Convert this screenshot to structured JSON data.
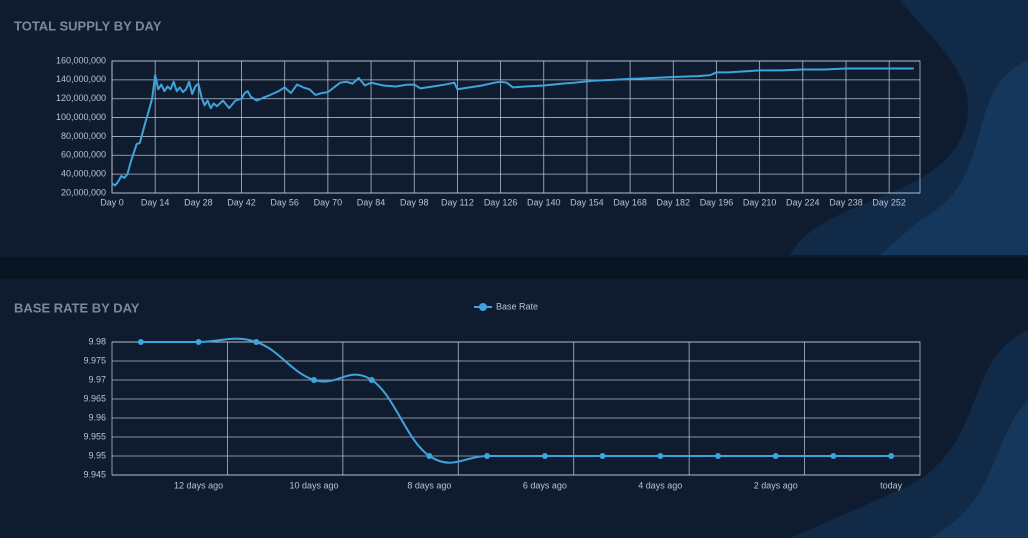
{
  "chart_data": [
    {
      "type": "line",
      "title": "TOTAL SUPPLY BY DAY",
      "color": "#3fa3dc",
      "grid": true,
      "smooth": false,
      "markers": false,
      "x": [
        0,
        1,
        2,
        3,
        4,
        5,
        6,
        7,
        8,
        9,
        10,
        11,
        12,
        13,
        14,
        15,
        16,
        17,
        18,
        19,
        20,
        21,
        22,
        23,
        24,
        25,
        26,
        27,
        28,
        29,
        30,
        31,
        32,
        33,
        34,
        36,
        38,
        40,
        42,
        43,
        44,
        45,
        47,
        49,
        52,
        54,
        56,
        58,
        60,
        62,
        64,
        66,
        68,
        70,
        72,
        74,
        76,
        78,
        80,
        82,
        84,
        88,
        92,
        96,
        98,
        100,
        104,
        108,
        111,
        112,
        116,
        120,
        124,
        126,
        128,
        130,
        134,
        140,
        146,
        150,
        156,
        162,
        168,
        175,
        182,
        190,
        194,
        196,
        200,
        205,
        210,
        217,
        224,
        231,
        238,
        245,
        252,
        260
      ],
      "values": [
        30000000,
        28000000,
        32000000,
        38000000,
        36000000,
        40000000,
        52000000,
        62000000,
        72000000,
        73000000,
        85000000,
        97000000,
        108000000,
        120000000,
        145000000,
        130000000,
        135000000,
        128000000,
        133000000,
        130000000,
        138000000,
        128000000,
        132000000,
        127000000,
        130000000,
        138000000,
        125000000,
        133000000,
        136000000,
        122000000,
        113000000,
        118000000,
        110000000,
        115000000,
        112000000,
        118000000,
        110000000,
        118000000,
        120000000,
        126000000,
        128000000,
        122000000,
        118000000,
        121000000,
        125000000,
        128000000,
        132000000,
        126000000,
        135000000,
        132000000,
        130000000,
        124000000,
        126000000,
        127000000,
        132000000,
        137000000,
        138000000,
        136000000,
        142000000,
        134000000,
        137000000,
        134000000,
        133000000,
        135000000,
        135000000,
        131000000,
        133000000,
        135000000,
        137000000,
        130000000,
        132000000,
        134000000,
        137000000,
        138000000,
        137000000,
        132000000,
        133000000,
        134000000,
        136000000,
        137000000,
        139000000,
        140000000,
        141000000,
        142000000,
        143000000,
        144000000,
        145000000,
        148000000,
        148000000,
        149000000,
        150000000,
        150000000,
        151000000,
        151000000,
        152000000,
        152000000,
        152000000,
        152000000
      ],
      "xlim": [
        0,
        262
      ],
      "xticks": [
        {
          "value": 0,
          "label": "Day 0"
        },
        {
          "value": 14,
          "label": "Day 14"
        },
        {
          "value": 28,
          "label": "Day 28"
        },
        {
          "value": 42,
          "label": "Day 42"
        },
        {
          "value": 56,
          "label": "Day 56"
        },
        {
          "value": 70,
          "label": "Day 70"
        },
        {
          "value": 84,
          "label": "Day 84"
        },
        {
          "value": 98,
          "label": "Day 98"
        },
        {
          "value": 112,
          "label": "Day 112"
        },
        {
          "value": 126,
          "label": "Day 126"
        },
        {
          "value": 140,
          "label": "Day 140"
        },
        {
          "value": 154,
          "label": "Day 154"
        },
        {
          "value": 168,
          "label": "Day 168"
        },
        {
          "value": 182,
          "label": "Day 182"
        },
        {
          "value": 196,
          "label": "Day 196"
        },
        {
          "value": 210,
          "label": "Day 210"
        },
        {
          "value": 224,
          "label": "Day 224"
        },
        {
          "value": 238,
          "label": "Day 238"
        },
        {
          "value": 252,
          "label": "Day 252"
        }
      ],
      "ylim": [
        20000000,
        160000000
      ],
      "yticks": [
        {
          "value": 20000000,
          "label": "20,000,000"
        },
        {
          "value": 40000000,
          "label": "40,000,000"
        },
        {
          "value": 60000000,
          "label": "60,000,000"
        },
        {
          "value": 80000000,
          "label": "80,000,000"
        },
        {
          "value": 100000000,
          "label": "100,000,000"
        },
        {
          "value": 120000000,
          "label": "120,000,000"
        },
        {
          "value": 140000000,
          "label": "140,000,000"
        },
        {
          "value": 160000000,
          "label": "160,000,000"
        }
      ]
    },
    {
      "type": "line",
      "title": "BASE RATE BY DAY",
      "grid": true,
      "smooth": true,
      "markers": true,
      "legend": "top",
      "categories": [
        null,
        "12 days ago",
        null,
        "10 days ago",
        null,
        "8 days ago",
        null,
        "6 days ago",
        null,
        "4 days ago",
        null,
        "2 days ago",
        null,
        "today"
      ],
      "series": [
        {
          "name": "Base Rate",
          "color": "#3fa3dc",
          "values": [
            9.98,
            9.98,
            9.98,
            9.97,
            9.97,
            9.95,
            9.95,
            9.95,
            9.95,
            9.95,
            9.95,
            9.95,
            9.95,
            9.95
          ]
        }
      ],
      "ylim": [
        9.945,
        9.98
      ],
      "yticks": [
        9.945,
        9.95,
        9.955,
        9.96,
        9.965,
        9.97,
        9.975,
        9.98
      ]
    }
  ]
}
